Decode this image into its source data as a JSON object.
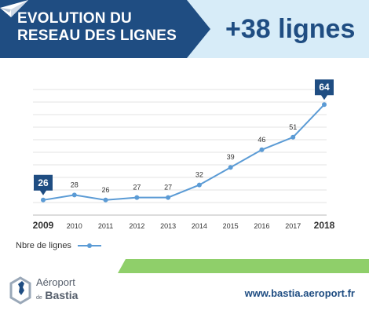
{
  "header": {
    "title_line1": "EVOLUTION DU",
    "title_line2": "RESEAU DES LIGNES",
    "headline": "+38 lignes",
    "colors": {
      "banner": "#1f4d82",
      "banner_light": "#d7ecf8",
      "accent": "#4a8ad4"
    }
  },
  "chart_data": {
    "type": "line",
    "x": [
      "2009",
      "2010",
      "2011",
      "2012",
      "2013",
      "2014",
      "2015",
      "2016",
      "2017",
      "2018"
    ],
    "series": [
      {
        "name": "Nbre de lignes",
        "values": [
          26,
          28,
          26,
          27,
          27,
          32,
          39,
          46,
          51,
          64
        ]
      }
    ],
    "highlighted_points": [
      "2009",
      "2018"
    ],
    "ylim": [
      20,
      70
    ],
    "grid": true,
    "legend": "bottom-left",
    "line_color": "#5b9bd5",
    "callout_color": "#1f4d82"
  },
  "legend": {
    "label": "Nbre de lignes"
  },
  "footer": {
    "logo_line1": "Aéroport",
    "logo_small": "de",
    "logo_big": "Bastia",
    "website": "www.bastia.aeroport.fr",
    "bar_color": "#8fcf6a"
  }
}
